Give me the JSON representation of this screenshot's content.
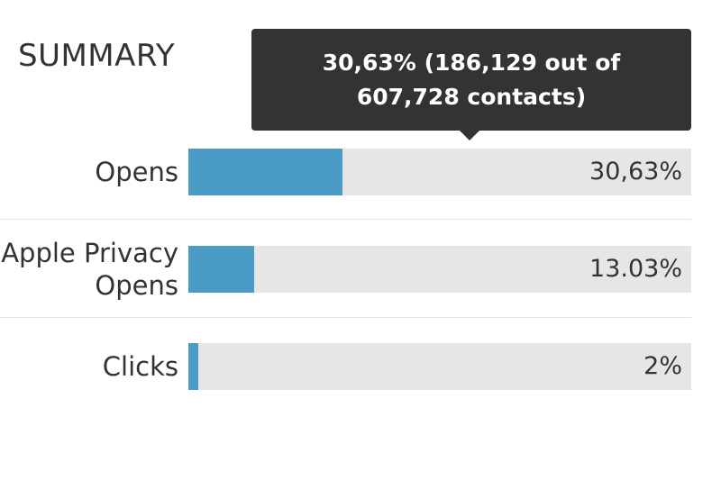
{
  "summary": {
    "title": "SUMMARY",
    "tooltip": "30,63% (186,129 out of 607,728 contacts)",
    "xlim": [
      0,
      100
    ],
    "rows": [
      {
        "label": "Opens",
        "value": 30.63,
        "value_label": "30,63%"
      },
      {
        "label": "Apple Privacy Opens",
        "value": 13.03,
        "value_label": "13.03%"
      },
      {
        "label": "Clicks",
        "value": 2,
        "value_label": "2%"
      }
    ]
  }
}
